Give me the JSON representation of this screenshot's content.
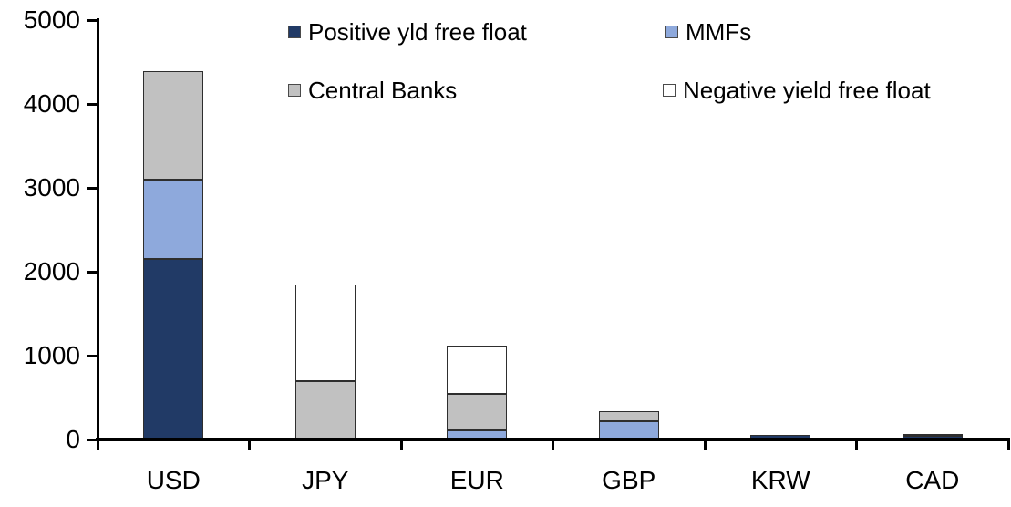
{
  "chart_data": {
    "type": "bar",
    "stacked": true,
    "title": "",
    "xlabel": "",
    "ylabel": "",
    "categories": [
      "USD",
      "JPY",
      "EUR",
      "GBP",
      "KRW",
      "CAD"
    ],
    "series": [
      {
        "name": "Positive yld free float",
        "color": "#213A66",
        "values": [
          2150,
          0,
          0,
          0,
          50,
          40
        ]
      },
      {
        "name": "MMFs",
        "color": "#8EA9DC",
        "values": [
          950,
          0,
          110,
          220,
          0,
          0
        ]
      },
      {
        "name": "Central Banks",
        "color": "#C1C1C1",
        "values": [
          1290,
          700,
          435,
          115,
          0,
          30
        ]
      },
      {
        "name": "Negative yield free float",
        "color": "#FFFFFF",
        "values": [
          0,
          1150,
          575,
          0,
          0,
          0
        ]
      }
    ],
    "totals": {
      "USD": 4390,
      "JPY": 1850,
      "EUR": 1120,
      "GBP": 335,
      "KRW": 50,
      "CAD": 70
    },
    "ylim": [
      0,
      5000
    ],
    "ytick_interval": 1000,
    "yticks": [
      "0",
      "1000",
      "2000",
      "3000",
      "4000",
      "5000"
    ],
    "grid": false,
    "legend_position": "top",
    "legend_rows": [
      [
        "Positive yld free float",
        "MMFs"
      ],
      [
        "Central Banks",
        "Negative yield free float"
      ]
    ],
    "axis_color": "#000000",
    "segment_border_color": "#2e2e2e"
  }
}
